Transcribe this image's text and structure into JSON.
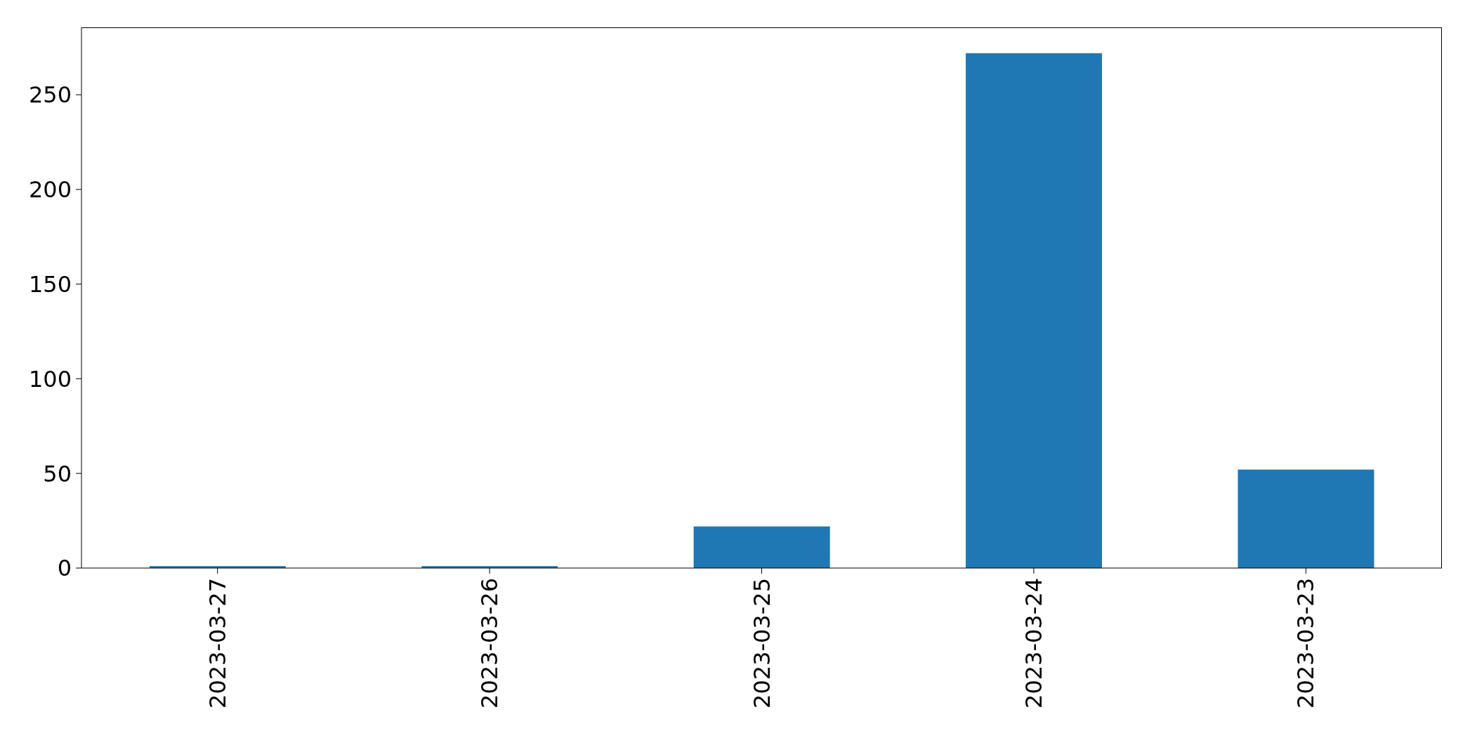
{
  "chart_data": {
    "type": "bar",
    "categories": [
      "2023-03-27",
      "2023-03-26",
      "2023-03-25",
      "2023-03-24",
      "2023-03-23"
    ],
    "values": [
      1,
      1,
      22,
      272,
      52
    ],
    "color": "#1f77b4",
    "ylim": [
      0,
      285.6
    ],
    "yticks": [
      0,
      50,
      100,
      150,
      200,
      250
    ]
  }
}
